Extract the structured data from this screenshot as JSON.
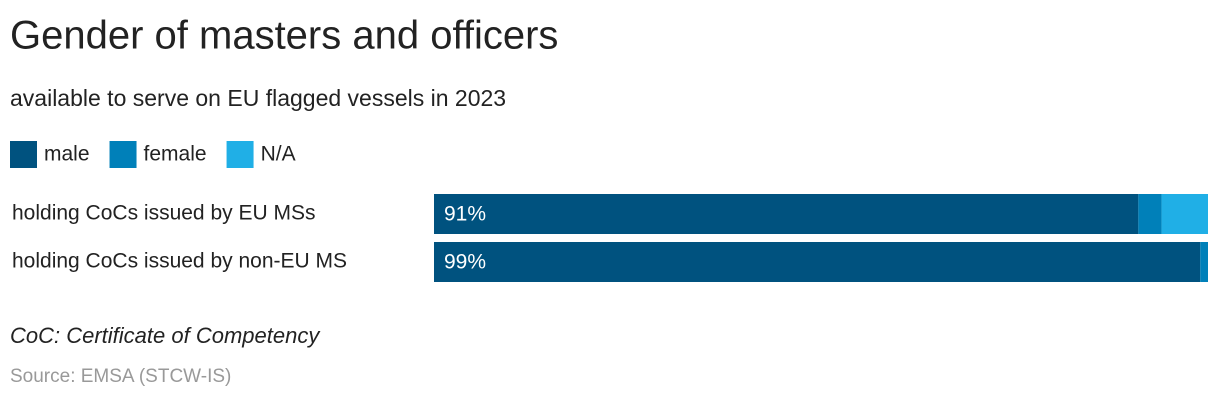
{
  "chart_data": {
    "type": "stacked_barh",
    "title": "Gender of masters and officers",
    "subtitle": "available to serve on EU flagged vessels in 2023",
    "categories": [
      "holding CoCs issued by EU MSs",
      "holding CoCs issued by non-EU MS"
    ],
    "series": [
      {
        "name": "male",
        "color": "#00527f",
        "values": [
          91,
          99
        ],
        "value_labels": [
          "91%",
          "99%"
        ]
      },
      {
        "name": "female",
        "color": "#0080b9",
        "values": [
          3,
          1
        ]
      },
      {
        "name": "N/A",
        "color": "#20afe6",
        "values": [
          6,
          0
        ]
      }
    ],
    "xlim": [
      0,
      100
    ],
    "note": "CoC: Certificate of Competency",
    "source": "Source: EMSA (STCW-IS)"
  }
}
